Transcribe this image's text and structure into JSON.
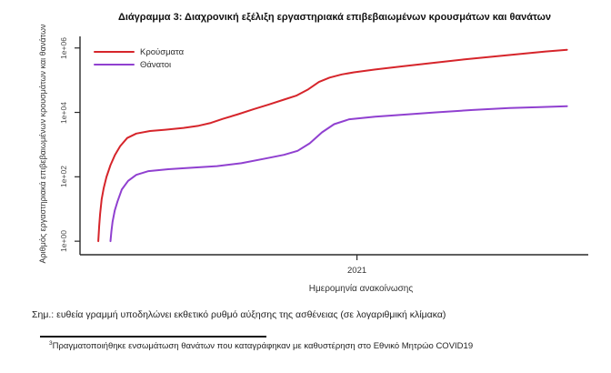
{
  "chart_data": {
    "type": "line",
    "title": "Διάγραμμα 3: Διαχρονική εξέλιξη εργαστηριακά επιβεβαιωμένων κρουσμάτων και θανάτων",
    "xlabel": "Ημερομηνία ανακοίνωσης",
    "ylabel": "Αριθμός εργαστηριακά επιβεβαιωμένων κρουσμάτων και θανάτων",
    "y_scale": "log10",
    "grid": false,
    "legend_position": "top-left",
    "axis_color": "#2a2a2a",
    "xlim": [
      2020.09,
      2021.76
    ],
    "ylim_log": [
      -0.42,
      6.36
    ],
    "x_ticks": [
      {
        "label": "2021",
        "value": 2021
      }
    ],
    "y_ticks": [
      {
        "label": "1e+00",
        "value": 1
      },
      {
        "label": "1e+02",
        "value": 100
      },
      {
        "label": "1e+04",
        "value": 10000
      },
      {
        "label": "1e+06",
        "value": 1000000
      }
    ],
    "series": [
      {
        "name": "Κρούσματα",
        "color": "#d6252b",
        "points": [
          [
            2020.15,
            1
          ],
          [
            2020.153,
            3
          ],
          [
            2020.156,
            7
          ],
          [
            2020.161,
            20
          ],
          [
            2020.168,
            45
          ],
          [
            2020.177,
            99
          ],
          [
            2020.19,
            230
          ],
          [
            2020.205,
            480
          ],
          [
            2020.222,
            900
          ],
          [
            2020.245,
            1600
          ],
          [
            2020.275,
            2200
          ],
          [
            2020.32,
            2650
          ],
          [
            2020.37,
            2900
          ],
          [
            2020.43,
            3300
          ],
          [
            2020.48,
            3850
          ],
          [
            2020.52,
            4700
          ],
          [
            2020.56,
            6300
          ],
          [
            2020.61,
            8800
          ],
          [
            2020.66,
            12500
          ],
          [
            2020.71,
            17500
          ],
          [
            2020.76,
            25000
          ],
          [
            2020.8,
            33000
          ],
          [
            2020.84,
            52000
          ],
          [
            2020.875,
            88000
          ],
          [
            2020.91,
            120000
          ],
          [
            2020.95,
            151000
          ],
          [
            2020.99,
            175000
          ],
          [
            2021.06,
            215000
          ],
          [
            2021.15,
            270000
          ],
          [
            2021.25,
            345000
          ],
          [
            2021.35,
            440000
          ],
          [
            2021.45,
            545000
          ],
          [
            2021.55,
            670000
          ],
          [
            2021.62,
            780000
          ],
          [
            2021.69,
            880000
          ]
        ]
      },
      {
        "name": "Θάνατοι",
        "color": "#9040d0",
        "points": [
          [
            2020.19,
            1
          ],
          [
            2020.193,
            2
          ],
          [
            2020.197,
            4
          ],
          [
            2020.204,
            9
          ],
          [
            2020.213,
            17
          ],
          [
            2020.227,
            40
          ],
          [
            2020.248,
            75
          ],
          [
            2020.275,
            115
          ],
          [
            2020.315,
            150
          ],
          [
            2020.38,
            172
          ],
          [
            2020.45,
            190
          ],
          [
            2020.54,
            215
          ],
          [
            2020.62,
            265
          ],
          [
            2020.7,
            370
          ],
          [
            2020.76,
            480
          ],
          [
            2020.805,
            640
          ],
          [
            2020.845,
            1100
          ],
          [
            2020.885,
            2400
          ],
          [
            2020.925,
            4300
          ],
          [
            2020.975,
            6100
          ],
          [
            2021.06,
            7400
          ],
          [
            2021.16,
            8600
          ],
          [
            2021.26,
            10000
          ],
          [
            2021.38,
            11900
          ],
          [
            2021.5,
            13600
          ],
          [
            2021.6,
            14600
          ],
          [
            2021.69,
            15600
          ]
        ]
      }
    ]
  },
  "notes": {
    "note": "Σημ.: ευθεία γραμμή υποδηλώνει εκθετικό ρυθμό αύξησης της ασθένειας (σε λογαριθμική κλίμακα)",
    "footnote_mark": "3",
    "footnote_text": "Πραγματοποιήθηκε ενσωμάτωση θανάτων που καταγράφηκαν με καθυστέρηση στο Εθνικό Μητρώο COVID19"
  }
}
